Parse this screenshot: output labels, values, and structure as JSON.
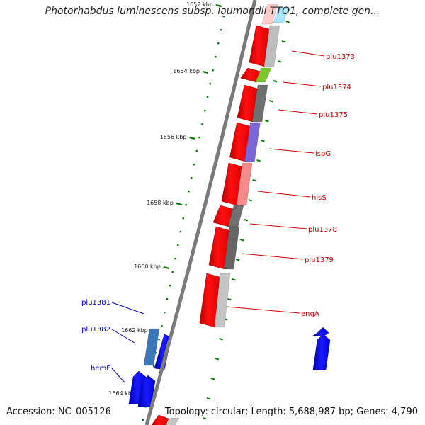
{
  "title": "Photorhabdus luminescens subsp. laumondii TTO1, complete gen...",
  "footer": {
    "accession": "Accession: NC_005126",
    "summary": "Topology: circular; Length: 5,688,987 bp; Genes: 4,790"
  },
  "ruler_labels": [
    "1652 kbp",
    "1654 kbp",
    "1656 kbp",
    "1658 kbp",
    "1660 kbp",
    "1662 kbp",
    "1664 kbp"
  ],
  "gene_labels_right": [
    "plu1373",
    "plu1374",
    "plu1375",
    "ispG",
    "hisS",
    "plu1378",
    "plu1379",
    "engA"
  ],
  "gene_labels_left": [
    "plu1381",
    "plu1382",
    "hemF"
  ],
  "colors": {
    "backbone": "#7a7a7a",
    "tick": "#0a7a0a",
    "cds": "#ff0000",
    "right_label": "#cc0000",
    "left_label": "#0000cc",
    "left_cds": "#0000ee"
  }
}
